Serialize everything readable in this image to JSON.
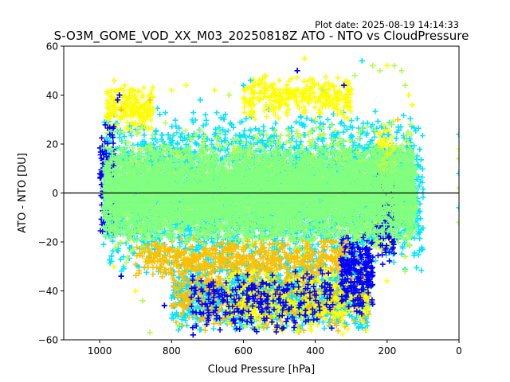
{
  "header": {
    "plot_date": "Plot date: 2025-08-19 14:14:33"
  },
  "chart_data": {
    "type": "scatter",
    "title": "S-O3M_GOME_VOD_XX_M03_20250818Z ATO - NTO vs CloudPressure",
    "xlabel": "Cloud Pressure [hPa]",
    "ylabel": "ATO - NTO [DU]",
    "xlim": [
      1100,
      0
    ],
    "ylim": [
      -60,
      60
    ],
    "x_ticks": [
      1000,
      800,
      600,
      400,
      200,
      0
    ],
    "x_tick_labels": [
      "1000",
      "800",
      "600",
      "400",
      "200",
      "0"
    ],
    "y_ticks": [
      -60,
      -40,
      -20,
      0,
      20,
      40,
      60
    ],
    "y_tick_labels": [
      "−60",
      "−40",
      "−20",
      "0",
      "20",
      "40",
      "60"
    ],
    "reference_line_y": 0,
    "grid": false,
    "marker": "plus",
    "colors": [
      "#0000ff",
      "#00e5ff",
      "#80ff80",
      "#ffff00",
      "#ffbf00",
      "#2ee6e6",
      "#b3ff4d"
    ],
    "series_points": [
      {
        "x": 960,
        "y": 46,
        "c": 3
      },
      {
        "x": 955,
        "y": 42,
        "c": 3
      },
      {
        "x": 950,
        "y": 38,
        "c": 0
      },
      {
        "x": 945,
        "y": 40,
        "c": 0
      },
      {
        "x": 940,
        "y": 34,
        "c": 4
      },
      {
        "x": 930,
        "y": 44,
        "c": 3
      },
      {
        "x": 880,
        "y": 40,
        "c": 3
      },
      {
        "x": 860,
        "y": 38,
        "c": 4
      },
      {
        "x": 800,
        "y": 42,
        "c": 3
      },
      {
        "x": 760,
        "y": 44,
        "c": 3
      },
      {
        "x": 720,
        "y": 38,
        "c": 1
      },
      {
        "x": 680,
        "y": 42,
        "c": 3
      },
      {
        "x": 640,
        "y": 40,
        "c": 6
      },
      {
        "x": 600,
        "y": 44,
        "c": 1
      },
      {
        "x": 580,
        "y": 46,
        "c": 1
      },
      {
        "x": 540,
        "y": 48,
        "c": 3
      },
      {
        "x": 520,
        "y": 44,
        "c": 3
      },
      {
        "x": 500,
        "y": 46,
        "c": 3
      },
      {
        "x": 480,
        "y": 42,
        "c": 3
      },
      {
        "x": 450,
        "y": 50,
        "c": 0
      },
      {
        "x": 430,
        "y": 55,
        "c": 3
      },
      {
        "x": 380,
        "y": 42,
        "c": 6
      },
      {
        "x": 360,
        "y": 40,
        "c": 3
      },
      {
        "x": 320,
        "y": 44,
        "c": 0
      },
      {
        "x": 290,
        "y": 48,
        "c": 6
      },
      {
        "x": 270,
        "y": 54,
        "c": 1
      },
      {
        "x": 240,
        "y": 52,
        "c": 6
      },
      {
        "x": 220,
        "y": 50,
        "c": 6
      },
      {
        "x": 200,
        "y": 52,
        "c": 3
      },
      {
        "x": 180,
        "y": 52,
        "c": 6
      },
      {
        "x": 160,
        "y": 50,
        "c": 6
      },
      {
        "x": 150,
        "y": 44,
        "c": 6
      },
      {
        "x": 140,
        "y": 40,
        "c": 3
      },
      {
        "x": 130,
        "y": 36,
        "c": 3
      },
      {
        "x": 135,
        "y": 28,
        "c": 6
      },
      {
        "x": 140,
        "y": 20,
        "c": 3
      },
      {
        "x": 170,
        "y": 30,
        "c": 4
      },
      {
        "x": 190,
        "y": 28,
        "c": 6
      },
      {
        "x": 200,
        "y": 16,
        "c": 3
      },
      {
        "x": 120,
        "y": -6,
        "c": 6
      },
      {
        "x": 140,
        "y": -18,
        "c": 6
      },
      {
        "x": 150,
        "y": -26,
        "c": 6
      },
      {
        "x": 150,
        "y": -32,
        "c": 6
      },
      {
        "x": 200,
        "y": -36,
        "c": 3
      },
      {
        "x": 960,
        "y": -30,
        "c": 3
      },
      {
        "x": 940,
        "y": -34,
        "c": 0
      },
      {
        "x": 900,
        "y": -40,
        "c": 3
      },
      {
        "x": 880,
        "y": -44,
        "c": 6
      },
      {
        "x": 860,
        "y": -57,
        "c": 6
      },
      {
        "x": 820,
        "y": -46,
        "c": 0
      },
      {
        "x": 780,
        "y": -54,
        "c": 6
      },
      {
        "x": 740,
        "y": -58,
        "c": 0
      },
      {
        "x": 0,
        "y": 24,
        "c": 1
      },
      {
        "x": 0,
        "y": 18,
        "c": 3
      },
      {
        "x": 0,
        "y": 14,
        "c": 6
      },
      {
        "x": 0,
        "y": 8,
        "c": 1
      },
      {
        "x": 0,
        "y": 2,
        "c": 6
      },
      {
        "x": 0,
        "y": -6,
        "c": 1
      },
      {
        "x": 0,
        "y": -12,
        "c": 6
      }
    ],
    "clusters": [
      {
        "x": [
          120,
          990
        ],
        "y": [
          -20,
          20
        ],
        "n": 5500,
        "c": 2
      },
      {
        "x": [
          100,
          990
        ],
        "y": [
          -35,
          35
        ],
        "n": 2600,
        "c": 1
      },
      {
        "x": [
          130,
          980
        ],
        "y": [
          -30,
          30
        ],
        "n": 1400,
        "c": 6
      },
      {
        "x": [
          180,
          920
        ],
        "y": [
          -28,
          32
        ],
        "n": 900,
        "c": 5
      },
      {
        "x": [
          250,
          800
        ],
        "y": [
          -58,
          -25
        ],
        "n": 1100,
        "c": 1
      },
      {
        "x": [
          250,
          800
        ],
        "y": [
          -58,
          -25
        ],
        "n": 500,
        "c": 4
      },
      {
        "x": [
          250,
          650
        ],
        "y": [
          -58,
          -30
        ],
        "n": 350,
        "c": 3
      },
      {
        "x": [
          350,
          750
        ],
        "y": [
          -58,
          -30
        ],
        "n": 260,
        "c": 0
      },
      {
        "x": [
          240,
          330
        ],
        "y": [
          -50,
          -15
        ],
        "n": 220,
        "c": 0
      },
      {
        "x": [
          180,
          230
        ],
        "y": [
          -25,
          30
        ],
        "n": 260,
        "c": 3
      },
      {
        "x": [
          180,
          230
        ],
        "y": [
          -30,
          10
        ],
        "n": 160,
        "c": 0
      },
      {
        "x": [
          850,
          980
        ],
        "y": [
          25,
          45
        ],
        "n": 200,
        "c": 3
      },
      {
        "x": [
          300,
          600
        ],
        "y": [
          30,
          48
        ],
        "n": 300,
        "c": 3
      },
      {
        "x": [
          960,
          1000
        ],
        "y": [
          -20,
          30
        ],
        "n": 150,
        "c": 0
      },
      {
        "x": [
          300,
          900
        ],
        "y": [
          -35,
          -18
        ],
        "n": 500,
        "c": 4
      }
    ]
  }
}
